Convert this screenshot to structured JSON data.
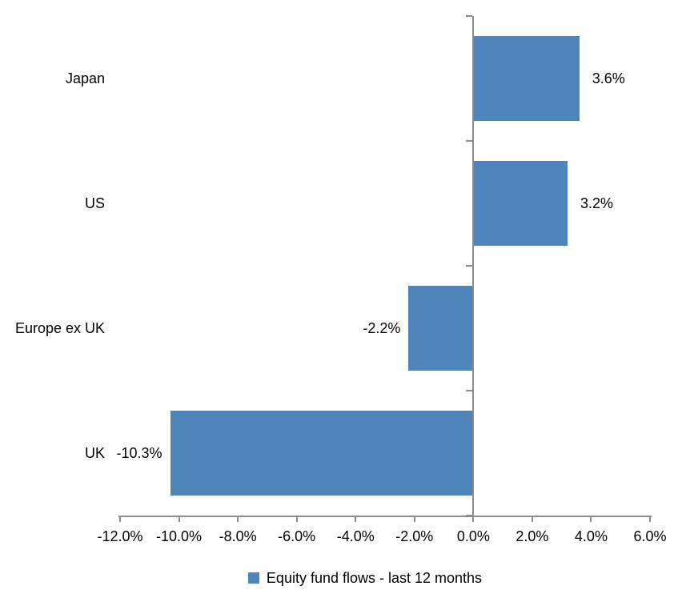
{
  "chart_data": {
    "type": "bar",
    "orientation": "horizontal",
    "title": "",
    "xlabel": "",
    "ylabel": "",
    "grid": "off",
    "legend_position": "bottom",
    "categories": [
      "Japan",
      "US",
      "Europe ex UK",
      "UK"
    ],
    "series": [
      {
        "name": "Equity fund flows - last 12 months",
        "values": [
          3.6,
          3.2,
          -2.2,
          -10.3
        ],
        "value_labels": [
          "3.6%",
          "3.2%",
          "-2.2%",
          "-10.3%"
        ]
      }
    ],
    "xlim": [
      -12,
      6
    ],
    "x_tick_values": [
      -12,
      -10,
      -8,
      -6,
      -4,
      -2,
      0,
      2,
      4,
      6
    ],
    "x_tick_labels": [
      "-12.0%",
      "-10.0%",
      "-8.0%",
      "-6.0%",
      "-4.0%",
      "-2.0%",
      "0.0%",
      "2.0%",
      "4.0%",
      "6.0%"
    ],
    "colors": {
      "bar": "#4E86BC",
      "axis": "#8C8C8C",
      "text": "#000000",
      "background": "#FFFFFF"
    }
  },
  "legend": {
    "label": "Equity fund flows - last 12 months"
  }
}
